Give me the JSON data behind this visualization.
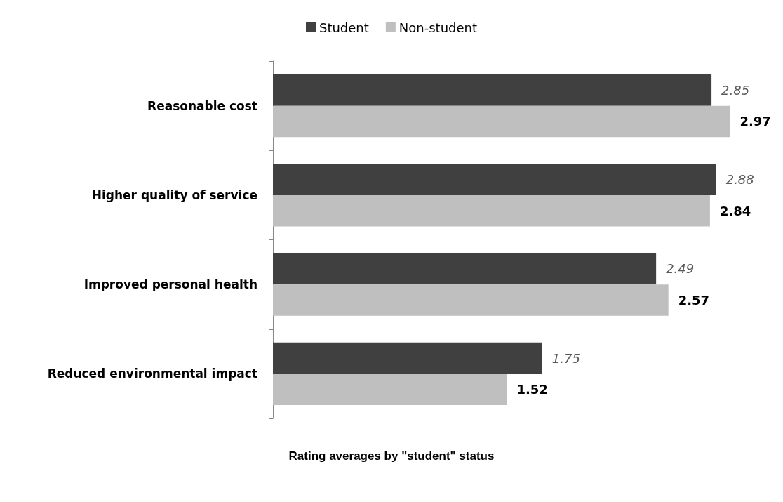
{
  "chart_data": {
    "type": "bar",
    "orientation": "horizontal",
    "xlabel": "Rating averages by \"student\" status",
    "categories": [
      "Reasonable cost",
      "Higher quality of service",
      "Improved personal health",
      "Reduced environmental impact"
    ],
    "series": [
      {
        "name": "Student",
        "color": "#404040",
        "values": [
          2.85,
          2.88,
          2.49,
          1.75
        ]
      },
      {
        "name": "Non-student",
        "color": "#bfbfbf",
        "values": [
          2.97,
          2.84,
          2.57,
          1.52
        ]
      }
    ],
    "data_labels": true,
    "legend": "top",
    "grid": false,
    "tick_labels": "y"
  }
}
